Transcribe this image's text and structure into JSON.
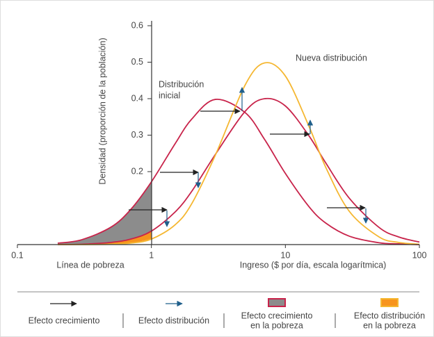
{
  "chart_data": {
    "type": "line",
    "xscale": "log",
    "x": [
      0.2,
      0.3,
      0.5,
      0.7,
      1,
      1.5,
      2,
      3,
      5,
      7,
      10,
      15,
      20,
      30,
      50,
      70,
      100
    ],
    "series": [
      {
        "color": "#c8234a",
        "values": [
          0.004,
          0.013,
          0.048,
          0.096,
          0.172,
          0.276,
          0.344,
          0.398,
          0.362,
          0.288,
          0.195,
          0.104,
          0.059,
          0.023,
          0.005,
          0.002,
          0.0
        ]
      },
      {
        "color": "#c8234a",
        "values": [
          0.0,
          0.001,
          0.006,
          0.015,
          0.037,
          0.089,
          0.146,
          0.247,
          0.365,
          0.4,
          0.38,
          0.298,
          0.224,
          0.127,
          0.047,
          0.021,
          0.007
        ]
      },
      {
        "color": "#f5b731",
        "values": [
          0.0,
          0.0,
          0.001,
          0.004,
          0.015,
          0.054,
          0.112,
          0.245,
          0.437,
          0.498,
          0.462,
          0.324,
          0.212,
          0.091,
          0.021,
          0.006,
          0.001
        ]
      }
    ],
    "xlim": [
      0.1,
      100
    ],
    "xticks": [
      0.1,
      1,
      10,
      100
    ],
    "ylim": [
      0,
      0.6
    ],
    "yticks": [
      0.2,
      0.3,
      0.4,
      0.5,
      0.6
    ],
    "ylabel": "Densidad (proporción de la población)",
    "xlabel": "Ingreso ($ por día, escala logarítmica)",
    "poverty_label": "Línea de pobreza",
    "annotations": [
      [
        "Nueva distribución"
      ],
      [
        "Distribución",
        "inicial"
      ]
    ],
    "area_colors": [
      "#8c8c8c",
      "#f7941d"
    ],
    "legend": [
      [
        "Efecto crecimiento"
      ],
      [
        "Efecto distribución"
      ],
      [
        "Efecto crecimiento",
        "en la pobreza"
      ],
      [
        "Efecto distribución",
        "en la pobreza"
      ]
    ]
  }
}
